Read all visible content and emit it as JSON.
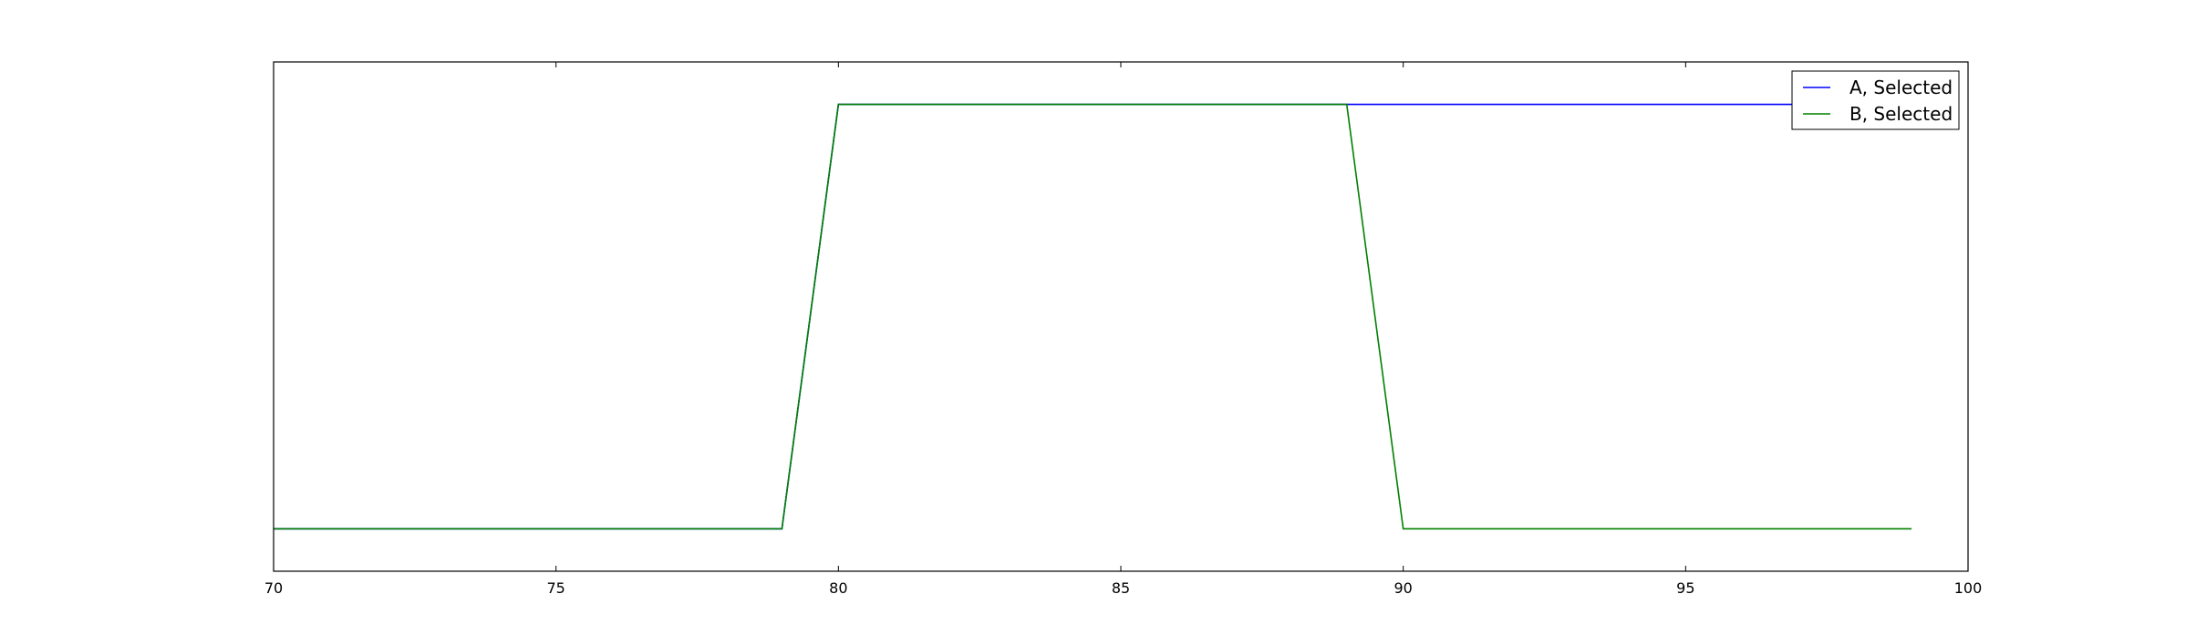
{
  "chart_data": {
    "type": "line",
    "title": "",
    "xlabel": "",
    "ylabel": "",
    "xlim": [
      70,
      100
    ],
    "ylim": [
      -0.1,
      1.1
    ],
    "x_ticks": [
      70,
      75,
      80,
      85,
      90,
      95,
      100
    ],
    "x_tick_labels": [
      "70",
      "75",
      "80",
      "85",
      "90",
      "95",
      "100"
    ],
    "y_ticks_visible": false,
    "grid": false,
    "legend_position": "top-right",
    "series": [
      {
        "name": "A, Selected",
        "color": "#0000ff",
        "x": [
          70,
          71,
          72,
          73,
          74,
          75,
          76,
          77,
          78,
          79,
          80,
          81,
          82,
          83,
          84,
          85,
          86,
          87,
          88,
          89,
          90,
          91,
          92,
          93,
          94,
          95,
          96,
          97,
          98,
          99
        ],
        "y": [
          0,
          0,
          0,
          0,
          0,
          0,
          0,
          0,
          0,
          0,
          1,
          1,
          1,
          1,
          1,
          1,
          1,
          1,
          1,
          1,
          1,
          1,
          1,
          1,
          1,
          1,
          1,
          1,
          1,
          1
        ]
      },
      {
        "name": "B, Selected",
        "color": "#008000",
        "x": [
          70,
          71,
          72,
          73,
          74,
          75,
          76,
          77,
          78,
          79,
          80,
          81,
          82,
          83,
          84,
          85,
          86,
          87,
          88,
          89,
          90,
          91,
          92,
          93,
          94,
          95,
          96,
          97,
          98,
          99
        ],
        "y": [
          0,
          0,
          0,
          0,
          0,
          0,
          0,
          0,
          0,
          0,
          1,
          1,
          1,
          1,
          1,
          1,
          1,
          1,
          1,
          1,
          0,
          0,
          0,
          0,
          0,
          0,
          0,
          0,
          0,
          0
        ]
      }
    ]
  }
}
